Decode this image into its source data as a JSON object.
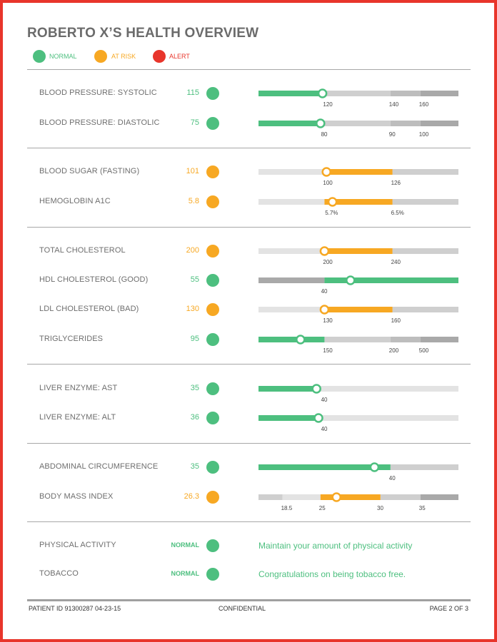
{
  "title": "ROBERTO X’S HEALTH OVERVIEW",
  "colors": {
    "normal": "#4dbf7f",
    "at_risk": "#f7a823",
    "alert": "#e8352b",
    "bar_light": "#e3e3e3",
    "bar_mid": "#cfcfcf",
    "bar_dark": "#a9a9a9",
    "text": "#6e6e6e",
    "border": "#e8352b"
  },
  "legend": [
    {
      "label": "NORMAL",
      "status": "normal"
    },
    {
      "label": "AT RISK",
      "status": "at_risk"
    },
    {
      "label": "ALERT",
      "status": "alert"
    }
  ],
  "groups": [
    {
      "rows": [
        {
          "label": "BLOOD PRESSURE: SYSTOLIC",
          "value": "115",
          "status": "normal",
          "bar": {
            "fill_start": 0,
            "fill_end": 0.32,
            "marker": 0.32,
            "segments": [
              [
                0.32,
                0.66,
                "bar_mid"
              ],
              [
                0.66,
                0.81,
                "bar_mid2"
              ],
              [
                0.81,
                1.0,
                "bar_dark"
              ]
            ],
            "ticks": [
              [
                "120",
                0.33
              ],
              [
                "140",
                0.66
              ],
              [
                "160",
                0.81
              ]
            ]
          }
        },
        {
          "label": "BLOOD PRESSURE: DIASTOLIC",
          "value": "75",
          "status": "normal",
          "bar": {
            "fill_start": 0,
            "fill_end": 0.31,
            "marker": 0.31,
            "segments": [
              [
                0.31,
                0.66,
                "bar_mid"
              ],
              [
                0.66,
                0.81,
                "bar_mid2"
              ],
              [
                0.81,
                1.0,
                "bar_dark"
              ]
            ],
            "ticks": [
              [
                "80",
                0.32
              ],
              [
                "90",
                0.66
              ],
              [
                "100",
                0.81
              ]
            ]
          }
        }
      ]
    },
    {
      "rows": [
        {
          "label": "BLOOD SUGAR (FASTING)",
          "value": "101",
          "status": "at_risk",
          "bar": {
            "fill_start": 0.34,
            "fill_end": 0.67,
            "marker": 0.34,
            "segments": [
              [
                0,
                0.34,
                "bar_light"
              ],
              [
                0.67,
                1.0,
                "bar_mid"
              ]
            ],
            "ticks": [
              [
                "100",
                0.33
              ],
              [
                "126",
                0.67
              ]
            ]
          }
        },
        {
          "label": "HEMOGLOBIN A1C",
          "value": "5.8",
          "status": "at_risk",
          "bar": {
            "fill_start": 0.33,
            "fill_end": 0.67,
            "marker": 0.37,
            "segments": [
              [
                0,
                0.33,
                "bar_light"
              ],
              [
                0.67,
                1.0,
                "bar_mid"
              ]
            ],
            "ticks": [
              [
                "5.7%",
                0.34
              ],
              [
                "6.5%",
                0.67
              ]
            ]
          }
        }
      ]
    },
    {
      "rows": [
        {
          "label": "TOTAL CHOLESTEROL",
          "value": "200",
          "status": "at_risk",
          "bar": {
            "fill_start": 0.33,
            "fill_end": 0.67,
            "marker": 0.33,
            "segments": [
              [
                0,
                0.33,
                "bar_light"
              ],
              [
                0.67,
                1.0,
                "bar_mid"
              ]
            ],
            "ticks": [
              [
                "200",
                0.33
              ],
              [
                "240",
                0.67
              ]
            ]
          }
        },
        {
          "label": "HDL CHOLESTEROL (GOOD)",
          "value": "55",
          "status": "normal",
          "bar": {
            "fill_start": 0.33,
            "fill_end": 1.0,
            "marker": 0.46,
            "segments": [
              [
                0,
                0.33,
                "bar_dark"
              ]
            ],
            "ticks": [
              [
                "40",
                0.32
              ]
            ]
          }
        },
        {
          "label": "LDL CHOLESTEROL (BAD)",
          "value": "130",
          "status": "at_risk",
          "bar": {
            "fill_start": 0.33,
            "fill_end": 0.67,
            "marker": 0.33,
            "segments": [
              [
                0,
                0.33,
                "bar_light"
              ],
              [
                0.67,
                1.0,
                "bar_mid"
              ]
            ],
            "ticks": [
              [
                "130",
                0.33
              ],
              [
                "160",
                0.67
              ]
            ]
          }
        },
        {
          "label": "TRIGLYCERIDES",
          "value": "95",
          "status": "normal",
          "bar": {
            "fill_start": 0,
            "fill_end": 0.33,
            "marker": 0.21,
            "segments": [
              [
                0.33,
                0.66,
                "bar_mid"
              ],
              [
                0.66,
                0.81,
                "bar_mid2"
              ],
              [
                0.81,
                1.0,
                "bar_dark"
              ]
            ],
            "ticks": [
              [
                "150",
                0.33
              ],
              [
                "200",
                0.66
              ],
              [
                "500",
                0.81
              ]
            ]
          }
        }
      ]
    },
    {
      "rows": [
        {
          "label": "LIVER ENZYME: AST",
          "value": "35",
          "status": "normal",
          "bar": {
            "fill_start": 0,
            "fill_end": 0.31,
            "marker": 0.29,
            "segments": [
              [
                0.31,
                1.0,
                "bar_light"
              ]
            ],
            "ticks": [
              [
                "40",
                0.32
              ]
            ]
          }
        },
        {
          "label": "LIVER ENZYME: ALT",
          "value": "36",
          "status": "normal",
          "bar": {
            "fill_start": 0,
            "fill_end": 0.31,
            "marker": 0.3,
            "segments": [
              [
                0.31,
                1.0,
                "bar_light"
              ]
            ],
            "ticks": [
              [
                "40",
                0.32
              ]
            ]
          }
        }
      ]
    },
    {
      "rows": [
        {
          "label": "ABDOMINAL CIRCUMFERENCE",
          "value": "35",
          "status": "normal",
          "bar": {
            "fill_start": 0,
            "fill_end": 0.66,
            "marker": 0.58,
            "segments": [
              [
                0.66,
                1.0,
                "bar_mid"
              ]
            ],
            "ticks": [
              [
                "40",
                0.66
              ]
            ]
          }
        },
        {
          "label": "BODY MASS INDEX",
          "value": "26.3",
          "status": "at_risk",
          "bar": {
            "fill_start": 0.31,
            "fill_end": 0.61,
            "marker": 0.39,
            "segments": [
              [
                0,
                0.12,
                "bar_mid"
              ],
              [
                0.12,
                0.31,
                "bar_light"
              ],
              [
                0.61,
                0.81,
                "bar_mid"
              ],
              [
                0.81,
                1.0,
                "bar_dark"
              ]
            ],
            "ticks": [
              [
                "18.5",
                0.12
              ],
              [
                "25",
                0.31
              ],
              [
                "30",
                0.6
              ],
              [
                "35",
                0.81
              ]
            ]
          }
        }
      ]
    },
    {
      "rows": [
        {
          "label": "PHYSICAL ACTIVITY",
          "value": "NORMAL",
          "status": "normal",
          "note": "Maintain your amount of physical activity"
        },
        {
          "label": "TOBACCO",
          "value": "NORMAL",
          "status": "normal",
          "note": "Congratulations on being tobacco free."
        }
      ]
    }
  ],
  "footer": {
    "patient": "PATIENT ID 91300287     04-23-15",
    "confidential": "CONFIDENTIAL",
    "page": "PAGE 2 OF 3"
  }
}
